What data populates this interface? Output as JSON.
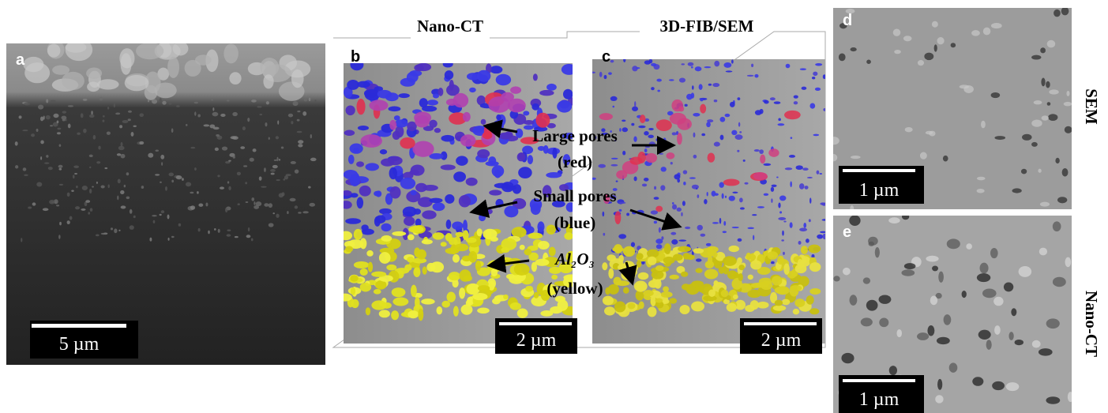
{
  "header": {
    "left_title": "Nano-CT",
    "right_title": "3D-FIB/SEM"
  },
  "panels": [
    {
      "label": "a",
      "scale_bar": "5 µm"
    },
    {
      "label": "b",
      "scale_bar": "2 µm"
    },
    {
      "label": "c",
      "scale_bar": "2 µm"
    },
    {
      "label": "d",
      "scale_bar": "1 µm",
      "side_label": "SEM"
    },
    {
      "label": "e",
      "scale_bar": "1 µm",
      "side_label": "Nano-CT"
    }
  ],
  "annotations": [
    {
      "line1": "Large pores",
      "line2": "(red)"
    },
    {
      "line1": "Small pores",
      "line2": "(blue)"
    },
    {
      "line1": "Al₂O₃",
      "line2": "(yellow)"
    }
  ]
}
